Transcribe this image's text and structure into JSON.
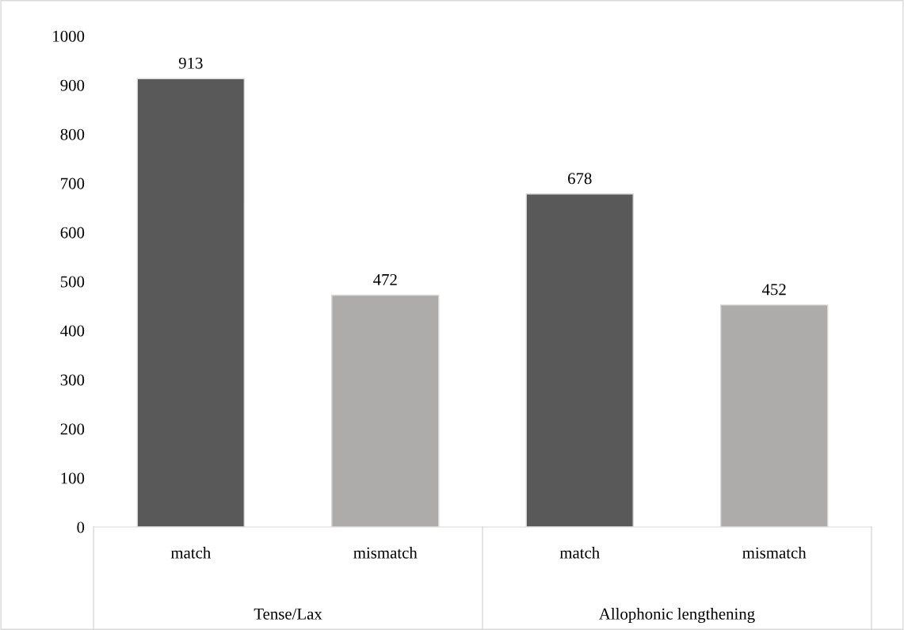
{
  "chart_data": {
    "type": "bar",
    "categories": [
      "match",
      "mismatch",
      "match",
      "mismatch"
    ],
    "values": [
      913,
      472,
      678,
      452
    ],
    "colors": [
      "#595959",
      "#aeabab",
      "#595959",
      "#aeabab"
    ],
    "ylim": [
      0,
      1000
    ],
    "yticks": [
      0,
      100,
      200,
      300,
      400,
      500,
      600,
      700,
      800,
      900,
      1000
    ],
    "data_labels": true,
    "grid": false,
    "legend": false,
    "annotations": [
      "Tense/Lax",
      "Allophonic lengthening"
    ]
  }
}
